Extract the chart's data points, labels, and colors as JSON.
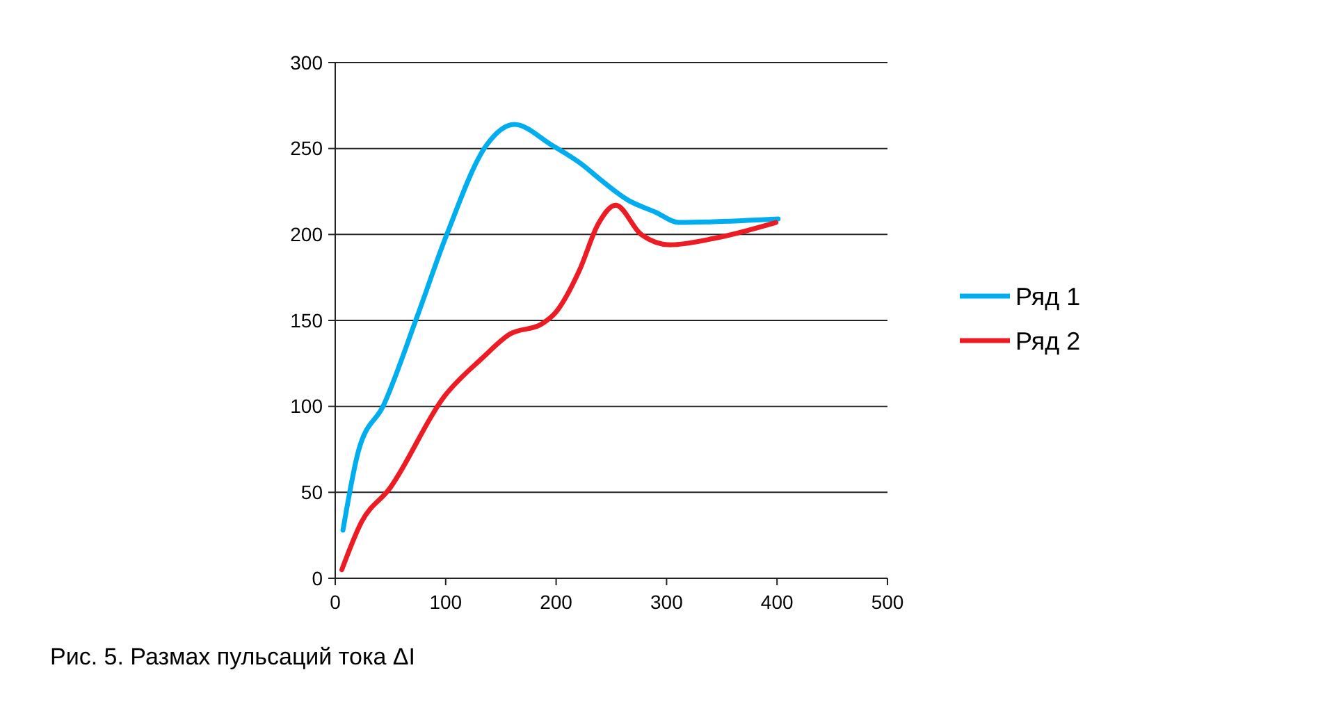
{
  "chart_data": {
    "type": "line",
    "title": "Рис. 5. Размах пульсаций тока ΔI",
    "xlim": [
      0,
      500
    ],
    "xticks": [
      0,
      100,
      200,
      300,
      400,
      500
    ],
    "ylim": [
      0,
      300
    ],
    "yticks": [
      0,
      50,
      100,
      150,
      200,
      250,
      300
    ],
    "grid": "y",
    "legend": "right",
    "marker": "none",
    "line_style": "solid",
    "series": [
      {
        "name": "Ряд 1",
        "color": "#00aeef",
        "x": [
          7,
          21,
          44,
          74,
          101,
          137,
          162,
          196,
          225,
          238,
          265,
          290,
          311,
          401
        ],
        "values": [
          28,
          74,
          101,
          152,
          200,
          252,
          264,
          252,
          240,
          233,
          220,
          213,
          207,
          209
        ]
      },
      {
        "name": "Ряд 2",
        "color": "#ed1c24",
        "x": [
          6,
          24,
          49,
          99,
          133,
          158,
          187,
          200,
          221,
          238,
          254,
          277,
          303,
          345,
          399
        ],
        "values": [
          5,
          33,
          52,
          106,
          128,
          142,
          148,
          155,
          179,
          206,
          217,
          200,
          194,
          198,
          207
        ]
      }
    ]
  }
}
